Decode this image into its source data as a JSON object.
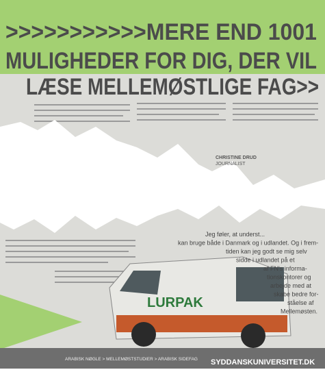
{
  "headline": {
    "line1": ">>>>>>>>>>>MERE END 1001",
    "line2": "MULIGHEDER FOR DIG, DER VIL",
    "line3": "LÆSE MELLEMØSTLIGE FAG>>"
  },
  "byline": {
    "name": "CHRISTINE DRUD",
    "role": "JOURNALIST"
  },
  "quote": [
    "Jeg føler, at underst...",
    "kan bruge både i Danmark og i udlandet. Og i frem-",
    "tiden kan jeg godt se mig selv",
    "sidde i udlandet på et",
    "af FN's informa-",
    "tionskontorer og",
    "arbejde med at",
    "skabe bedre for-",
    "ståelse af",
    "Mellemøsten."
  ],
  "van_label": "LURPAK",
  "footer": {
    "breadcrumb": "ARABISK NØGLE > MELLEMØSTSTUDIER > ARABISK SIDEFAG",
    "website": "SYDDANSKUNIVERSITET.DK"
  }
}
